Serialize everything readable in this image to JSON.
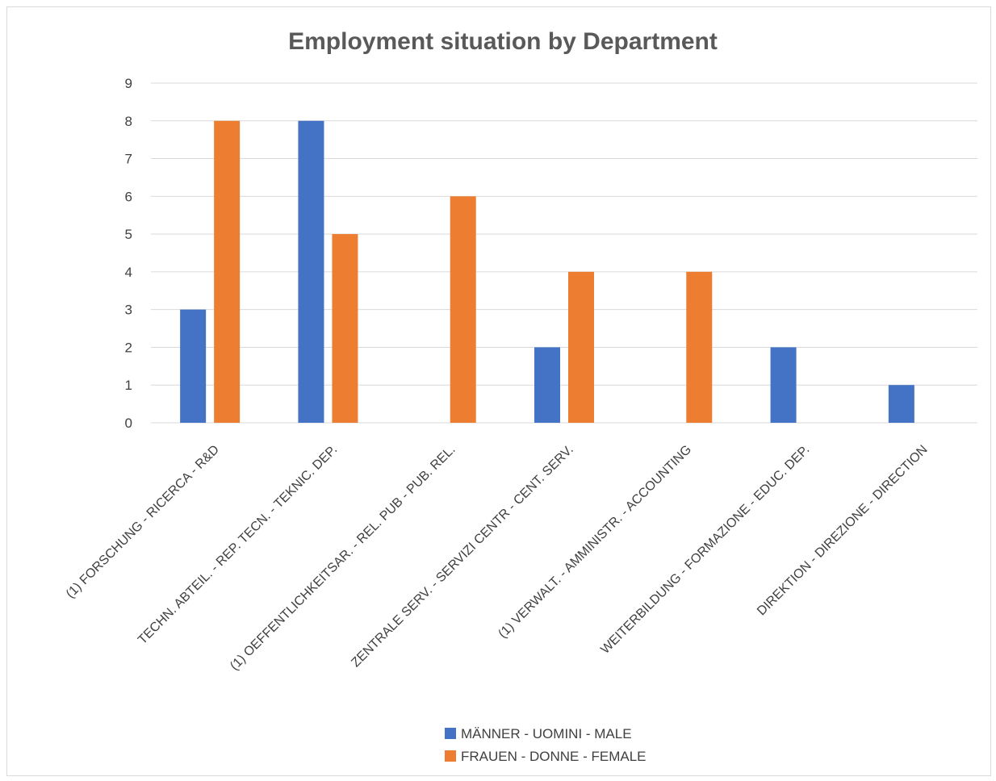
{
  "chart_data": {
    "type": "bar",
    "title": "Employment situation by Department",
    "xlabel": "",
    "ylabel": "",
    "ylim": [
      0,
      9
    ],
    "yticks": [
      0,
      1,
      2,
      3,
      4,
      5,
      6,
      7,
      8,
      9
    ],
    "grid": true,
    "legend_position": "bottom",
    "categories": [
      "(1)  FORSCHUNG - RICERCA  - R&D",
      "TECHN. ABTEIL. - REP. TECN. - TEKNIC. DEP.",
      "(1)  OEFFENTLICHKEITSAR. - REL. PUB - PUB. REL.",
      "ZENTRALE SERV. - SERVIZI CENTR - CENT. SERV.",
      "(1)  VERWALT. - AMMINISTR. - ACCOUNTING",
      "WEITERBILDUNG - FORMAZIONE - EDUC. DEP.",
      "DIREKTION - DIREZIONE - DIRECTION"
    ],
    "series": [
      {
        "name": "MÄNNER - UOMINI - MALE",
        "color": "#4472c4",
        "values": [
          3,
          8,
          0,
          2,
          0,
          2,
          1
        ]
      },
      {
        "name": "FRAUEN - DONNE - FEMALE",
        "color": "#ed7d31",
        "values": [
          8,
          5,
          6,
          4,
          4,
          0,
          0
        ]
      }
    ]
  }
}
